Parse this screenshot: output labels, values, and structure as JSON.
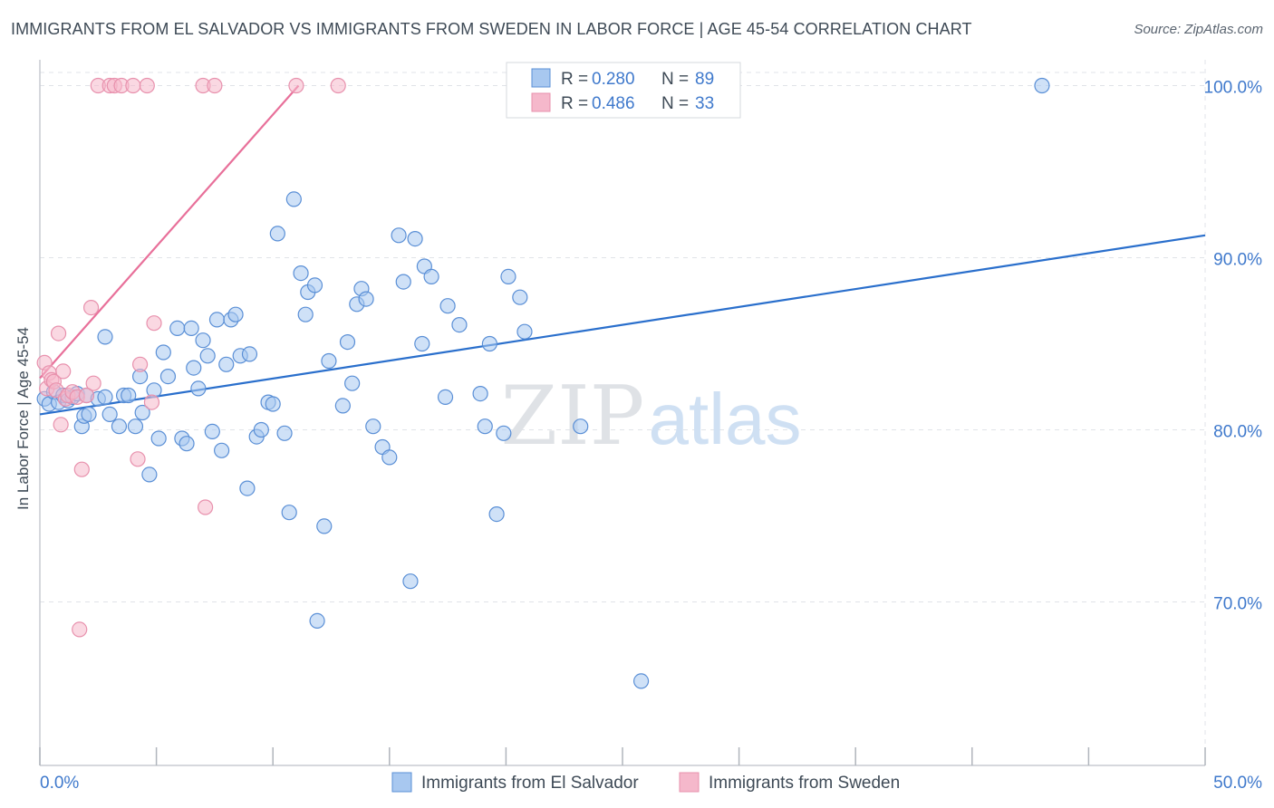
{
  "title": "IMMIGRANTS FROM EL SALVADOR VS IMMIGRANTS FROM SWEDEN IN LABOR FORCE | AGE 45-54 CORRELATION CHART",
  "source": "Source: ZipAtlas.com",
  "watermark": {
    "zip": "ZIP",
    "atlas": "atlas"
  },
  "colors": {
    "blue_fill": "#a8c8f0",
    "blue_stroke": "#5a8fd6",
    "blue_line": "#2a6fcc",
    "pink_fill": "#f5b8cb",
    "pink_stroke": "#e891ad",
    "pink_line": "#e8709a",
    "tick_label": "#3f79cc",
    "grid": "#e0e3e8",
    "text": "#3e4a56"
  },
  "chart_data": {
    "type": "scatter",
    "title": "IMMIGRANTS FROM EL SALVADOR VS IMMIGRANTS FROM SWEDEN IN LABOR FORCE | AGE 45-54 CORRELATION CHART",
    "xlabel": "",
    "ylabel": "In Labor Force | Age 45-54",
    "xlim": [
      0,
      50
    ],
    "ylim": [
      60.5,
      101.5
    ],
    "x_tick_labels": [
      "0.0%",
      "50.0%"
    ],
    "y_ticks": [
      70,
      80,
      90,
      100
    ],
    "y_tick_labels": [
      "70.0%",
      "80.0%",
      "90.0%",
      "100.0%"
    ],
    "grid": true,
    "legend_position": "top-center",
    "stats": [
      {
        "r_label": "R = ",
        "r": "0.280",
        "n_label": "N = ",
        "n": "89"
      },
      {
        "r_label": "R = ",
        "r": "0.486",
        "n_label": "N = ",
        "n": "33"
      }
    ],
    "series": [
      {
        "name": "Immigrants from El Salvador",
        "color": "#a8c8f0",
        "trend": {
          "x": [
            0,
            50
          ],
          "y": [
            80.9,
            91.3
          ]
        },
        "points": [
          [
            0.2,
            81.8
          ],
          [
            0.4,
            81.5
          ],
          [
            0.6,
            82.2
          ],
          [
            0.8,
            81.6
          ],
          [
            1.0,
            82.0
          ],
          [
            1.2,
            81.7
          ],
          [
            1.4,
            81.9
          ],
          [
            1.6,
            82.1
          ],
          [
            1.8,
            80.2
          ],
          [
            2.0,
            82.0
          ],
          [
            2.5,
            81.8
          ],
          [
            2.8,
            81.9
          ],
          [
            1.9,
            80.8
          ],
          [
            2.1,
            80.9
          ],
          [
            2.8,
            85.4
          ],
          [
            3.0,
            80.9
          ],
          [
            3.4,
            80.2
          ],
          [
            3.6,
            82.0
          ],
          [
            3.8,
            82.0
          ],
          [
            4.1,
            80.2
          ],
          [
            4.3,
            83.1
          ],
          [
            4.4,
            81.0
          ],
          [
            4.7,
            77.4
          ],
          [
            4.9,
            82.3
          ],
          [
            5.1,
            79.5
          ],
          [
            5.3,
            84.5
          ],
          [
            5.5,
            83.1
          ],
          [
            5.9,
            85.9
          ],
          [
            6.1,
            79.5
          ],
          [
            6.3,
            79.2
          ],
          [
            6.5,
            85.9
          ],
          [
            6.6,
            83.6
          ],
          [
            6.8,
            82.4
          ],
          [
            7.0,
            85.2
          ],
          [
            7.2,
            84.3
          ],
          [
            7.4,
            79.9
          ],
          [
            7.6,
            86.4
          ],
          [
            7.8,
            78.8
          ],
          [
            8.0,
            83.8
          ],
          [
            8.2,
            86.4
          ],
          [
            8.4,
            86.7
          ],
          [
            8.6,
            84.3
          ],
          [
            9.0,
            84.4
          ],
          [
            9.3,
            79.6
          ],
          [
            9.5,
            80.0
          ],
          [
            8.9,
            76.6
          ],
          [
            9.8,
            81.6
          ],
          [
            10.0,
            81.5
          ],
          [
            10.2,
            91.4
          ],
          [
            10.5,
            79.8
          ],
          [
            10.7,
            75.2
          ],
          [
            10.9,
            93.4
          ],
          [
            11.2,
            89.1
          ],
          [
            11.4,
            86.7
          ],
          [
            11.5,
            88.0
          ],
          [
            11.8,
            88.4
          ],
          [
            11.9,
            68.9
          ],
          [
            12.2,
            74.4
          ],
          [
            12.4,
            84.0
          ],
          [
            13.0,
            81.4
          ],
          [
            13.2,
            85.1
          ],
          [
            13.4,
            82.7
          ],
          [
            13.6,
            87.3
          ],
          [
            13.8,
            88.2
          ],
          [
            14.0,
            87.6
          ],
          [
            14.3,
            80.2
          ],
          [
            14.7,
            79.0
          ],
          [
            15.0,
            78.4
          ],
          [
            15.4,
            91.3
          ],
          [
            15.6,
            88.6
          ],
          [
            15.9,
            71.2
          ],
          [
            16.1,
            91.1
          ],
          [
            16.4,
            85.0
          ],
          [
            16.5,
            89.5
          ],
          [
            16.8,
            88.9
          ],
          [
            17.5,
            87.2
          ],
          [
            17.4,
            81.9
          ],
          [
            18.0,
            86.1
          ],
          [
            18.9,
            82.1
          ],
          [
            19.1,
            80.2
          ],
          [
            19.3,
            85.0
          ],
          [
            19.6,
            75.1
          ],
          [
            19.9,
            79.8
          ],
          [
            20.1,
            88.9
          ],
          [
            20.6,
            87.7
          ],
          [
            20.8,
            85.7
          ],
          [
            23.2,
            80.2
          ],
          [
            25.8,
            65.4
          ],
          [
            43.0,
            100.0
          ]
        ]
      },
      {
        "name": "Immigrants from Sweden",
        "color": "#f5b8cb",
        "trend": {
          "x": [
            0,
            11.1
          ],
          "y": [
            83.0,
            100.0
          ]
        },
        "points": [
          [
            0.2,
            83.9
          ],
          [
            0.3,
            82.4
          ],
          [
            0.4,
            83.3
          ],
          [
            0.5,
            82.9
          ],
          [
            0.6,
            82.8
          ],
          [
            0.7,
            82.3
          ],
          [
            0.8,
            85.6
          ],
          [
            0.9,
            80.3
          ],
          [
            1.0,
            83.4
          ],
          [
            1.1,
            81.8
          ],
          [
            1.2,
            82.0
          ],
          [
            1.4,
            82.2
          ],
          [
            1.6,
            81.9
          ],
          [
            1.8,
            77.7
          ],
          [
            2.0,
            82.0
          ],
          [
            2.2,
            87.1
          ],
          [
            2.3,
            82.7
          ],
          [
            1.7,
            68.4
          ],
          [
            2.5,
            100.0
          ],
          [
            3.0,
            100.0
          ],
          [
            3.2,
            100.0
          ],
          [
            3.5,
            100.0
          ],
          [
            4.0,
            100.0
          ],
          [
            4.6,
            100.0
          ],
          [
            4.8,
            81.6
          ],
          [
            4.3,
            83.8
          ],
          [
            4.2,
            78.3
          ],
          [
            4.9,
            86.2
          ],
          [
            7.0,
            100.0
          ],
          [
            7.5,
            100.0
          ],
          [
            7.1,
            75.5
          ],
          [
            11.0,
            100.0
          ],
          [
            12.8,
            100.0
          ]
        ]
      }
    ]
  }
}
